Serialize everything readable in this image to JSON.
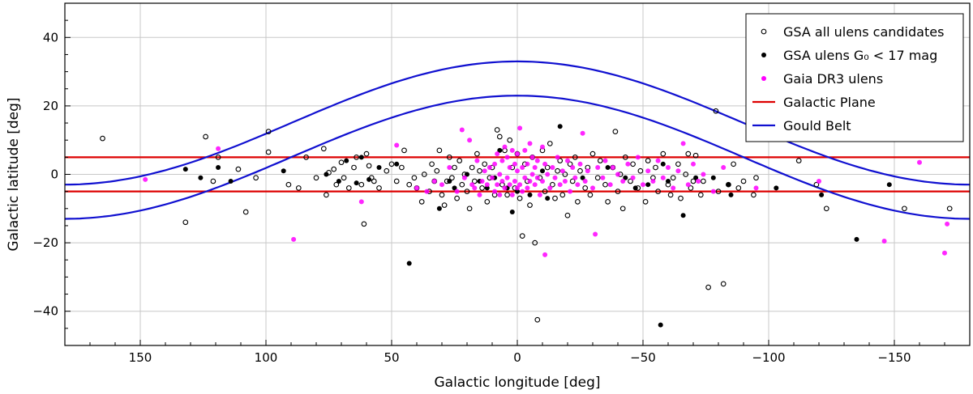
{
  "chart_data": {
    "type": "scatter",
    "title": "",
    "xlabel": "Galactic longitude [deg]",
    "ylabel": "Galactic latitude [deg]",
    "xlim": [
      180,
      -180
    ],
    "ylim": [
      -50,
      50
    ],
    "x_ticks": [
      150,
      100,
      50,
      0,
      -50,
      -100,
      -150
    ],
    "x_tick_labels": [
      "150",
      "100",
      "50",
      "0",
      "−50",
      "−100",
      "−150"
    ],
    "y_ticks": [
      40,
      20,
      0,
      -20,
      -40
    ],
    "y_tick_labels": [
      "40",
      "20",
      "0",
      "−20",
      "−40"
    ],
    "grid": true,
    "legend_position": "top-right",
    "series": [
      {
        "name": "GSA all ulens candidates",
        "marker": "open-circle",
        "color": "#000000",
        "points": [
          [
            165,
            10.5
          ],
          [
            132,
            -14
          ],
          [
            124,
            11
          ],
          [
            121,
            -2
          ],
          [
            119,
            5
          ],
          [
            111,
            1.5
          ],
          [
            108,
            -11
          ],
          [
            104,
            -1
          ],
          [
            99,
            12.5
          ],
          [
            99,
            6.5
          ],
          [
            91,
            -3
          ],
          [
            87,
            -4
          ],
          [
            84,
            5
          ],
          [
            80,
            -1
          ],
          [
            77,
            7.5
          ],
          [
            76,
            -6
          ],
          [
            75,
            0.5
          ],
          [
            73,
            1.5
          ],
          [
            72,
            -3
          ],
          [
            70,
            3.5
          ],
          [
            69,
            -1
          ],
          [
            67,
            -4
          ],
          [
            65,
            2
          ],
          [
            64,
            5
          ],
          [
            62,
            -3
          ],
          [
            61,
            -14.5
          ],
          [
            60,
            6
          ],
          [
            59,
            2.5
          ],
          [
            58,
            -1
          ],
          [
            57,
            -2
          ],
          [
            55,
            -4
          ],
          [
            52,
            1
          ],
          [
            50,
            3
          ],
          [
            48,
            -2
          ],
          [
            46,
            2
          ],
          [
            45,
            7
          ],
          [
            43,
            -3
          ],
          [
            41,
            -1
          ],
          [
            40,
            -4
          ],
          [
            38,
            -8
          ],
          [
            37,
            0
          ],
          [
            35,
            -5
          ],
          [
            34,
            3
          ],
          [
            33,
            -2
          ],
          [
            32,
            1
          ],
          [
            31,
            7
          ],
          [
            30,
            -6
          ],
          [
            29,
            -9
          ],
          [
            28,
            -2
          ],
          [
            27,
            5
          ],
          [
            26,
            -1
          ],
          [
            25,
            2
          ],
          [
            24,
            -7
          ],
          [
            23,
            4
          ],
          [
            22,
            -3
          ],
          [
            21,
            0
          ],
          [
            20,
            -5
          ],
          [
            19,
            -10
          ],
          [
            18,
            2
          ],
          [
            17,
            -2
          ],
          [
            16,
            6
          ],
          [
            15,
            1
          ],
          [
            14,
            -4
          ],
          [
            13,
            3
          ],
          [
            12,
            -8
          ],
          [
            11,
            -1
          ],
          [
            10,
            2
          ],
          [
            9,
            -6
          ],
          [
            8,
            13
          ],
          [
            7,
            11
          ],
          [
            6,
            -3
          ],
          [
            5,
            7
          ],
          [
            4,
            -6
          ],
          [
            3,
            10
          ],
          [
            2,
            2
          ],
          [
            1,
            -4
          ],
          [
            0,
            6
          ],
          [
            -1,
            -7
          ],
          [
            -2,
            -18
          ],
          [
            -3,
            3
          ],
          [
            -4,
            -2
          ],
          [
            -5,
            -9
          ],
          [
            -6,
            5
          ],
          [
            -7,
            -20
          ],
          [
            -8,
            -42.5
          ],
          [
            -9,
            -1
          ],
          [
            -10,
            7
          ],
          [
            -11,
            -5
          ],
          [
            -12,
            2
          ],
          [
            -13,
            9
          ],
          [
            -14,
            -3
          ],
          [
            -15,
            -7
          ],
          [
            -16,
            1
          ],
          [
            -17,
            4
          ],
          [
            -18,
            -6
          ],
          [
            -19,
            0
          ],
          [
            -20,
            -12
          ],
          [
            -21,
            3
          ],
          [
            -22,
            -2
          ],
          [
            -23,
            5
          ],
          [
            -24,
            -8
          ],
          [
            -25,
            1
          ],
          [
            -27,
            -4
          ],
          [
            -28,
            2
          ],
          [
            -29,
            -6
          ],
          [
            -30,
            6
          ],
          [
            -32,
            -1
          ],
          [
            -33,
            4
          ],
          [
            -35,
            -3
          ],
          [
            -36,
            -8
          ],
          [
            -38,
            2
          ],
          [
            -39,
            12.5
          ],
          [
            -40,
            -5
          ],
          [
            -41,
            0
          ],
          [
            -42,
            -10
          ],
          [
            -43,
            5
          ],
          [
            -45,
            -2
          ],
          [
            -46,
            3
          ],
          [
            -48,
            -4
          ],
          [
            -49,
            1
          ],
          [
            -51,
            -8
          ],
          [
            -52,
            4
          ],
          [
            -54,
            -1
          ],
          [
            -55,
            2
          ],
          [
            -56,
            -5
          ],
          [
            -58,
            6
          ],
          [
            -60,
            -3
          ],
          [
            -61,
            -6
          ],
          [
            -62,
            -1
          ],
          [
            -64,
            3
          ],
          [
            -65,
            -7
          ],
          [
            -67,
            0
          ],
          [
            -68,
            6
          ],
          [
            -69,
            -4
          ],
          [
            -70,
            -2
          ],
          [
            -71,
            5.5
          ],
          [
            -73,
            -6
          ],
          [
            -74,
            -2
          ],
          [
            -76,
            -33
          ],
          [
            -79,
            18.5
          ],
          [
            -80,
            -5
          ],
          [
            -82,
            -32
          ],
          [
            -84,
            -3
          ],
          [
            -86,
            3
          ],
          [
            -88,
            -4
          ],
          [
            -90,
            -2
          ],
          [
            -94,
            -6
          ],
          [
            -95,
            -1
          ],
          [
            -112,
            4
          ],
          [
            -119,
            -3
          ],
          [
            -123,
            -10
          ],
          [
            -154,
            -10
          ],
          [
            -172,
            -10
          ]
        ]
      },
      {
        "name": "GSA ulens G₀ < 17 mag",
        "marker": "filled-circle",
        "color": "#000000",
        "points": [
          [
            132,
            1.5
          ],
          [
            126,
            -1
          ],
          [
            119,
            2
          ],
          [
            114,
            -2
          ],
          [
            93,
            1
          ],
          [
            76,
            0
          ],
          [
            71,
            -2
          ],
          [
            68,
            4
          ],
          [
            64,
            -2.5
          ],
          [
            62,
            5
          ],
          [
            59,
            -1.5
          ],
          [
            55,
            2
          ],
          [
            48,
            3
          ],
          [
            43,
            -26
          ],
          [
            31,
            -10
          ],
          [
            27,
            -2
          ],
          [
            25,
            -4
          ],
          [
            20,
            0
          ],
          [
            15,
            -2
          ],
          [
            12,
            -4
          ],
          [
            9,
            -1
          ],
          [
            7,
            7
          ],
          [
            4,
            -4
          ],
          [
            2,
            -11
          ],
          [
            0,
            -5
          ],
          [
            -5,
            -6
          ],
          [
            -10,
            1
          ],
          [
            -12,
            -7
          ],
          [
            -17,
            14
          ],
          [
            -26,
            -1
          ],
          [
            -36,
            2
          ],
          [
            -43,
            -1
          ],
          [
            -47,
            -4
          ],
          [
            -52,
            -3
          ],
          [
            -57,
            -44
          ],
          [
            -58,
            3
          ],
          [
            -60,
            -2
          ],
          [
            -66,
            -12
          ],
          [
            -71,
            -1
          ],
          [
            -78,
            -1
          ],
          [
            -84,
            -3
          ],
          [
            -85,
            -6
          ],
          [
            -103,
            -4
          ],
          [
            -121,
            -6
          ],
          [
            -135,
            -19
          ],
          [
            -148,
            -3
          ]
        ]
      },
      {
        "name": "Gaia DR3 ulens",
        "marker": "filled-circle",
        "color": "#ff00ff",
        "points": [
          [
            148,
            -1.5
          ],
          [
            119,
            7.5
          ],
          [
            89,
            -19
          ],
          [
            62,
            -8
          ],
          [
            48,
            8.5
          ],
          [
            40,
            -4
          ],
          [
            36,
            -5
          ],
          [
            33,
            -2
          ],
          [
            30,
            -3
          ],
          [
            27,
            2
          ],
          [
            24,
            -5
          ],
          [
            22,
            13
          ],
          [
            21,
            -1
          ],
          [
            19,
            10
          ],
          [
            18,
            -3
          ],
          [
            17,
            -4
          ],
          [
            16,
            4
          ],
          [
            15,
            -6
          ],
          [
            14,
            -2
          ],
          [
            13,
            1
          ],
          [
            12,
            -3
          ],
          [
            11,
            2
          ],
          [
            10,
            -1
          ],
          [
            9,
            -5
          ],
          [
            9,
            3
          ],
          [
            8,
            -3
          ],
          [
            8,
            6
          ],
          [
            7,
            -6
          ],
          [
            7,
            0
          ],
          [
            6,
            -2
          ],
          [
            6,
            4
          ],
          [
            5,
            -4
          ],
          [
            5,
            8
          ],
          [
            4,
            -1
          ],
          [
            4,
            5
          ],
          [
            3,
            -3
          ],
          [
            3,
            2
          ],
          [
            2,
            -6
          ],
          [
            2,
            7
          ],
          [
            1,
            -2
          ],
          [
            1,
            3
          ],
          [
            0,
            -4
          ],
          [
            0,
            1
          ],
          [
            0,
            6
          ],
          [
            -1,
            -3
          ],
          [
            -1,
            13.5
          ],
          [
            -2,
            -5
          ],
          [
            -2,
            2
          ],
          [
            -3,
            -1
          ],
          [
            -3,
            7
          ],
          [
            -4,
            -4
          ],
          [
            -4,
            3
          ],
          [
            -5,
            -2
          ],
          [
            -5,
            9
          ],
          [
            -6,
            0
          ],
          [
            -6,
            5
          ],
          [
            -7,
            -3
          ],
          [
            -7,
            2
          ],
          [
            -8,
            -1
          ],
          [
            -8,
            4
          ],
          [
            -9,
            -6
          ],
          [
            -10,
            -2
          ],
          [
            -10,
            8
          ],
          [
            -11,
            -23.5
          ],
          [
            -11,
            3
          ],
          [
            -12,
            0
          ],
          [
            -13,
            -4
          ],
          [
            -14,
            2
          ],
          [
            -15,
            -1
          ],
          [
            -16,
            5
          ],
          [
            -17,
            -3
          ],
          [
            -18,
            1
          ],
          [
            -19,
            -2
          ],
          [
            -20,
            4
          ],
          [
            -21,
            -5
          ],
          [
            -22,
            2
          ],
          [
            -23,
            -1
          ],
          [
            -24,
            -3
          ],
          [
            -25,
            3
          ],
          [
            -26,
            12
          ],
          [
            -27,
            -2
          ],
          [
            -28,
            1
          ],
          [
            -30,
            -4
          ],
          [
            -31,
            -17.5
          ],
          [
            -32,
            2
          ],
          [
            -34,
            -1
          ],
          [
            -35,
            4
          ],
          [
            -37,
            -3
          ],
          [
            -38,
            2
          ],
          [
            -40,
            0
          ],
          [
            -42,
            -2
          ],
          [
            -44,
            3
          ],
          [
            -46,
            -1
          ],
          [
            -48,
            5
          ],
          [
            -50,
            -3
          ],
          [
            -52,
            1
          ],
          [
            -54,
            -2
          ],
          [
            -56,
            4
          ],
          [
            -58,
            -1
          ],
          [
            -60,
            2
          ],
          [
            -62,
            -4
          ],
          [
            -64,
            1
          ],
          [
            -66,
            9
          ],
          [
            -68,
            -3
          ],
          [
            -70,
            3
          ],
          [
            -72,
            -2
          ],
          [
            -74,
            0
          ],
          [
            -78,
            -5
          ],
          [
            -82,
            2
          ],
          [
            -95,
            -4
          ],
          [
            -120,
            -2
          ],
          [
            -146,
            -19.5
          ],
          [
            -160,
            3.5
          ],
          [
            -171,
            -14.5
          ],
          [
            -170,
            -23
          ]
        ]
      }
    ],
    "lines": [
      {
        "name": "Galactic Plane",
        "color": "#dd0000",
        "y": [
          5,
          -5
        ]
      },
      {
        "name": "Gould Belt",
        "color": "#1010d0",
        "amplitude": 18,
        "offset": 5,
        "band_width": 10
      }
    ]
  }
}
